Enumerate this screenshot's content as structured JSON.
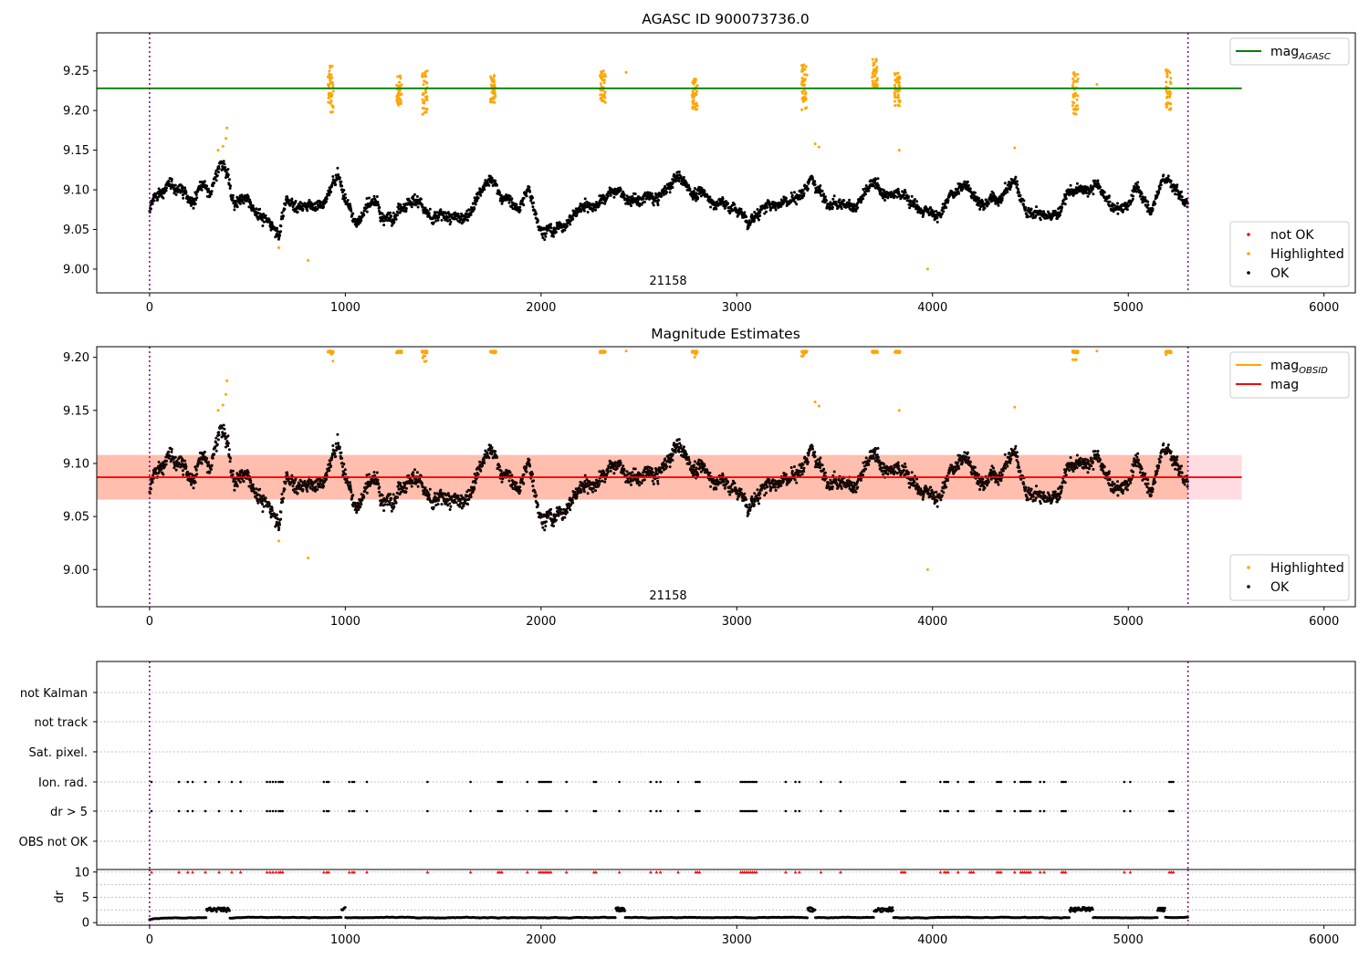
{
  "figure": {
    "title": "AGASC ID 900073736.0"
  },
  "chart_data": [
    {
      "id": "top",
      "type": "scatter",
      "title": "AGASC ID 900073736.0",
      "xlim": [
        -270,
        6160
      ],
      "ylim": [
        8.97,
        9.298
      ],
      "xticks": [
        0,
        1000,
        2000,
        3000,
        4000,
        5000,
        6000
      ],
      "yticks": [
        9.0,
        9.05,
        9.1,
        9.15,
        9.2,
        9.25
      ],
      "ytick_labels": [
        "9.00",
        "9.05",
        "9.10",
        "9.15",
        "9.20",
        "9.25"
      ],
      "obsid_label": {
        "text": "21158",
        "x": 2650
      },
      "obs_boundaries": [
        0,
        5305
      ],
      "grid": false,
      "hlines": [
        {
          "name": "mag_AGASC",
          "y": 9.228,
          "x0": -270,
          "x1": 5580,
          "color": "#008000"
        }
      ],
      "legends": [
        {
          "position": "top-right",
          "entries": [
            {
              "kind": "line",
              "label": "mag",
              "sub": "AGASC",
              "color": "#008000"
            }
          ]
        },
        {
          "position": "lower-right",
          "entries": [
            {
              "kind": "dot",
              "label": "not OK",
              "color": "#ff0000"
            },
            {
              "kind": "dot",
              "label": "Highlighted",
              "color": "#ffa500"
            },
            {
              "kind": "dot",
              "label": "OK",
              "color": "#000000"
            }
          ]
        }
      ],
      "series": [
        {
          "name": "OK",
          "color": "#000000",
          "trace": "mag_trace"
        },
        {
          "name": "Highlighted",
          "color": "#ffa500",
          "clusters": [
            {
              "x": 925,
              "y": [
                9.195,
                9.258
              ]
            },
            {
              "x": 1275,
              "y": [
                9.205,
                9.245
              ]
            },
            {
              "x": 1405,
              "y": [
                9.195,
                9.25
              ]
            },
            {
              "x": 1755,
              "y": [
                9.21,
                9.245
              ]
            },
            {
              "x": 2315,
              "y": [
                9.205,
                9.25
              ]
            },
            {
              "x": 2785,
              "y": [
                9.2,
                9.24
              ]
            },
            {
              "x": 3345,
              "y": [
                9.2,
                9.258
              ]
            },
            {
              "x": 3705,
              "y": [
                9.228,
                9.265
              ]
            },
            {
              "x": 3820,
              "y": [
                9.205,
                9.248
              ]
            },
            {
              "x": 4730,
              "y": [
                9.195,
                9.248
              ]
            },
            {
              "x": 5205,
              "y": [
                9.2,
                9.252
              ]
            }
          ],
          "points": [
            [
              350,
              9.15
            ],
            [
              375,
              9.155
            ],
            [
              390,
              9.165
            ],
            [
              395,
              9.178
            ],
            [
              660,
              9.027
            ],
            [
              810,
              9.011
            ],
            [
              3975,
              9.0
            ],
            [
              3400,
              9.158
            ],
            [
              3420,
              9.154
            ],
            [
              3830,
              9.15
            ],
            [
              4420,
              9.153
            ],
            [
              2435,
              9.248
            ],
            [
              4840,
              9.233
            ]
          ]
        }
      ]
    },
    {
      "id": "middle",
      "type": "scatter",
      "title": "Magnitude Estimates",
      "xlim": [
        -270,
        6160
      ],
      "ylim": [
        8.965,
        9.21
      ],
      "xticks": [
        0,
        1000,
        2000,
        3000,
        4000,
        5000,
        6000
      ],
      "yticks": [
        9.0,
        9.05,
        9.1,
        9.15,
        9.2
      ],
      "ytick_labels": [
        "9.00",
        "9.05",
        "9.10",
        "9.15",
        "9.20"
      ],
      "obsid_label": {
        "text": "21158",
        "x": 2650
      },
      "obs_boundaries": [
        0,
        5305
      ],
      "grid": false,
      "hlines": [
        {
          "name": "mag",
          "y": 9.087,
          "x0": -270,
          "x1": 5580,
          "color": "#ff0000"
        }
      ],
      "bands": [
        {
          "name": "mag_band",
          "y0": 9.066,
          "y1": 9.108,
          "x0": -270,
          "x1": 5580,
          "color": "#ffc0cb"
        },
        {
          "name": "mag_OBSID_band",
          "y0": 9.066,
          "y1": 9.108,
          "x0": -270,
          "x1": 5305,
          "color": "#ffa07a"
        }
      ],
      "legends": [
        {
          "position": "top-right",
          "entries": [
            {
              "kind": "line",
              "label": "mag",
              "sub": "OBSID",
              "color": "#ffa500"
            },
            {
              "kind": "line",
              "label": "mag",
              "sub": "",
              "color": "#ff0000"
            }
          ]
        },
        {
          "position": "lower-right",
          "entries": [
            {
              "kind": "dot",
              "label": "Highlighted",
              "color": "#ffa500"
            },
            {
              "kind": "dot",
              "label": "OK",
              "color": "#000000"
            }
          ]
        }
      ],
      "series": [
        {
          "name": "OK",
          "color": "#000000",
          "trace": "mag_trace"
        }
      ]
    },
    {
      "id": "flags",
      "type": "scatter",
      "xlim": [
        -270,
        6160
      ],
      "categories": [
        "not Kalman",
        "not track",
        "Sat. pixel.",
        "Ion. rad.",
        "dr > 5",
        "OBS not OK"
      ],
      "obs_boundaries": [
        0,
        5305
      ],
      "grid": "horizontal dotted",
      "flag_times": [
        10,
        150,
        195,
        220,
        285,
        355,
        420,
        465,
        600,
        615,
        630,
        645,
        660,
        670,
        680,
        890,
        905,
        915,
        1020,
        1035,
        1045,
        1110,
        1420,
        1640,
        1780,
        1790,
        1800,
        1930,
        1990,
        2000,
        2010,
        2020,
        2030,
        2040,
        2050,
        2130,
        2270,
        2280,
        2400,
        2560,
        2590,
        2610,
        2700,
        2790,
        2800,
        2810,
        3020,
        3030,
        3040,
        3050,
        3060,
        3070,
        3080,
        3090,
        3100,
        3250,
        3300,
        3320,
        3430,
        3530,
        3840,
        3850,
        3860,
        4040,
        4060,
        4070,
        4080,
        4130,
        4190,
        4200,
        4210,
        4330,
        4340,
        4350,
        4420,
        4450,
        4460,
        4470,
        4480,
        4490,
        4500,
        4550,
        4570,
        4660,
        4670,
        4680,
        4980,
        5010,
        5210,
        5220,
        5230
      ],
      "series": [
        {
          "name": "Ion. rad.",
          "color": "#000000"
        },
        {
          "name": "dr > 5",
          "color": "#000000"
        }
      ]
    },
    {
      "id": "dr",
      "type": "scatter",
      "xlim": [
        -270,
        6160
      ],
      "ylim": [
        -0.5,
        10.5
      ],
      "ylabel": "dr",
      "yticks": [
        0,
        5,
        10
      ],
      "xticks": [
        0,
        1000,
        2000,
        3000,
        4000,
        5000,
        6000
      ],
      "obs_boundaries": [
        0,
        5305
      ],
      "grid": "horizontal dotted",
      "series": [
        {
          "name": "dr",
          "color": "#000000"
        },
        {
          "name": "dr > 5 (clipped)",
          "color": "#ff0000",
          "y": 10
        }
      ]
    }
  ]
}
